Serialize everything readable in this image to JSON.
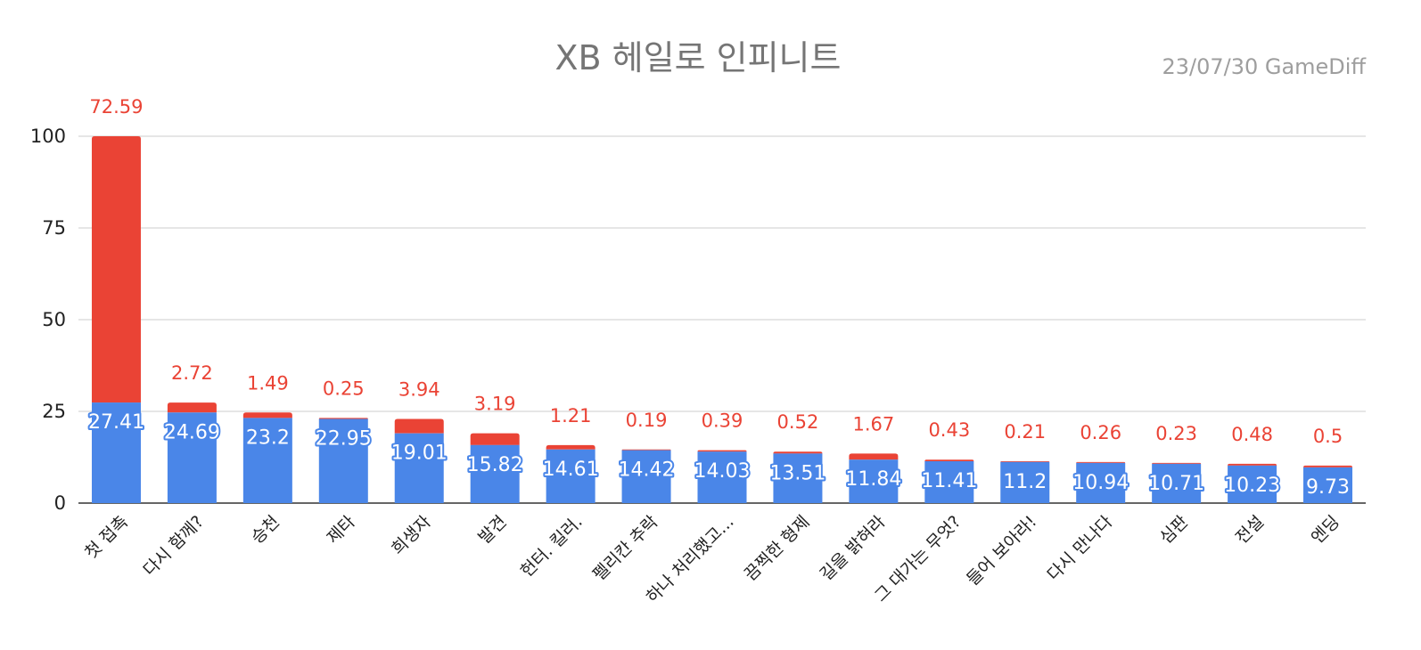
{
  "chart_data": {
    "type": "bar",
    "stacked": true,
    "title": "XB 헤일로 인피니트",
    "subtitle": "23/07/30  GameDiff",
    "xlabel": "",
    "ylabel": "",
    "ylim": [
      0,
      100
    ],
    "yticks": [
      "0",
      "25",
      "50",
      "75",
      "100"
    ],
    "grid": true,
    "categories": [
      "첫 접촉",
      "다시 함께?",
      "승천",
      "제타",
      "희생자",
      "발견",
      "헌터. 킬러.",
      "펠리칸 추락",
      "하나 처리했고...",
      "끔찍한 형제",
      "길을 밝혀라",
      "그 대가는 무엇?",
      "들어 보아라!",
      "다시 만나다",
      "심판",
      "전설",
      "엔딩"
    ],
    "series": [
      {
        "values": [
          27.41,
          24.69,
          23.2,
          22.95,
          19.01,
          15.82,
          14.61,
          14.42,
          14.03,
          13.51,
          11.84,
          11.41,
          11.2,
          10.94,
          10.71,
          10.23,
          9.73
        ],
        "color": "#4a86e8",
        "labels": [
          "27.41",
          "24.69",
          "23.2",
          "22.95",
          "19.01",
          "15.82",
          "14.61",
          "14.42",
          "14.03",
          "13.51",
          "11.84",
          "11.41",
          "11.2",
          "10.94",
          "10.71",
          "10.23",
          "9.73"
        ]
      },
      {
        "values": [
          72.59,
          2.72,
          1.49,
          0.25,
          3.94,
          3.19,
          1.21,
          0.19,
          0.39,
          0.52,
          1.67,
          0.43,
          0.21,
          0.26,
          0.23,
          0.48,
          0.5
        ],
        "color": "#ea4335",
        "labels": [
          "72.59",
          "2.72",
          "1.49",
          "0.25",
          "3.94",
          "3.19",
          "1.21",
          "0.19",
          "0.39",
          "0.52",
          "1.67",
          "0.43",
          "0.21",
          "0.26",
          "0.23",
          "0.48",
          "0.5"
        ]
      }
    ]
  }
}
